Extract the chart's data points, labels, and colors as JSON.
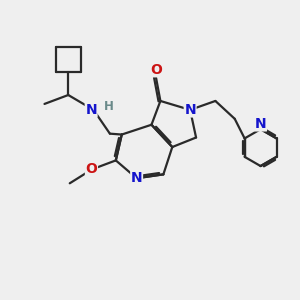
{
  "background_color": "#efefef",
  "bond_color": "#2a2a2a",
  "bond_width": 1.6,
  "atom_colors": {
    "N": "#1414cc",
    "O": "#cc1414",
    "H": "#6a8a8a",
    "C": "#2a2a2a"
  },
  "font_size_atom": 10,
  "font_size_small": 8.5,
  "figsize": [
    3.0,
    3.0
  ],
  "dpi": 100
}
